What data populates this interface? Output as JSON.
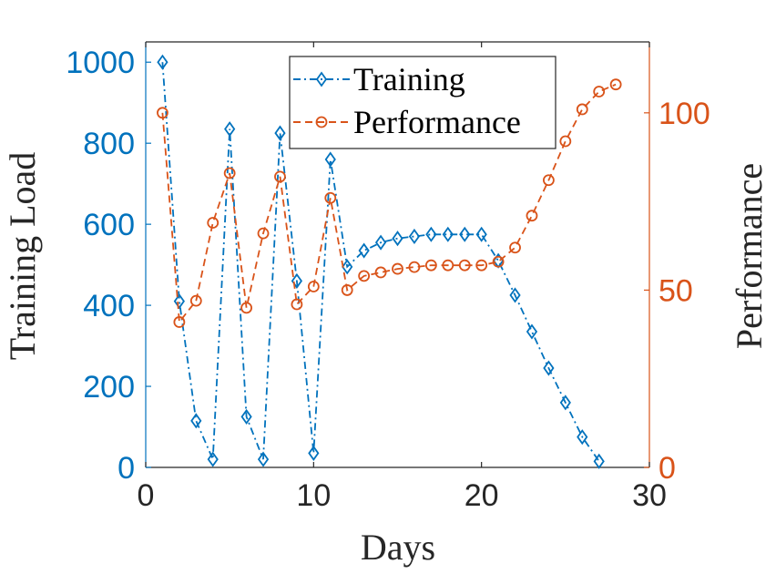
{
  "chart_data": {
    "type": "line",
    "title": "",
    "xlabel": "Days",
    "ylabel_left": "Training Load",
    "ylabel_right": "Performance",
    "xlim": [
      0,
      30
    ],
    "ylim_left": [
      0,
      1050
    ],
    "ylim_right": [
      0,
      120
    ],
    "x_ticks": [
      "0",
      "10",
      "20",
      "30"
    ],
    "y_ticks_left": [
      "0",
      "200",
      "400",
      "600",
      "800",
      "1000"
    ],
    "y_ticks_right": [
      "0",
      "50",
      "100"
    ],
    "legend_position": "top",
    "colors": {
      "training": "#0072BD",
      "performance": "#D95319",
      "axis": "#262626"
    },
    "series": [
      {
        "name": "Training",
        "axis": "left",
        "marker": "diamond",
        "line_style": "dash-dot",
        "x": [
          1,
          2,
          3,
          4,
          5,
          6,
          7,
          8,
          9,
          10,
          11,
          12,
          13,
          14,
          15,
          16,
          17,
          18,
          19,
          20,
          21,
          22,
          23,
          24,
          25,
          26,
          27
        ],
        "values": [
          1000,
          410,
          115,
          20,
          835,
          125,
          20,
          825,
          460,
          35,
          760,
          495,
          535,
          555,
          565,
          570,
          575,
          575,
          575,
          575,
          510,
          425,
          335,
          245,
          160,
          75,
          15
        ]
      },
      {
        "name": "Performance",
        "axis": "right",
        "marker": "circle",
        "line_style": "dashed",
        "x": [
          1,
          2,
          3,
          4,
          5,
          6,
          7,
          8,
          9,
          10,
          11,
          12,
          13,
          14,
          15,
          16,
          17,
          18,
          19,
          20,
          21,
          22,
          23,
          24,
          25,
          26,
          27,
          28
        ],
        "values": [
          100,
          41,
          47,
          69,
          83,
          45,
          66,
          82,
          46,
          51,
          76,
          50,
          54,
          55,
          56,
          56.5,
          57,
          57,
          57,
          57,
          58,
          62,
          71,
          81,
          92,
          101,
          106,
          108
        ]
      }
    ]
  }
}
